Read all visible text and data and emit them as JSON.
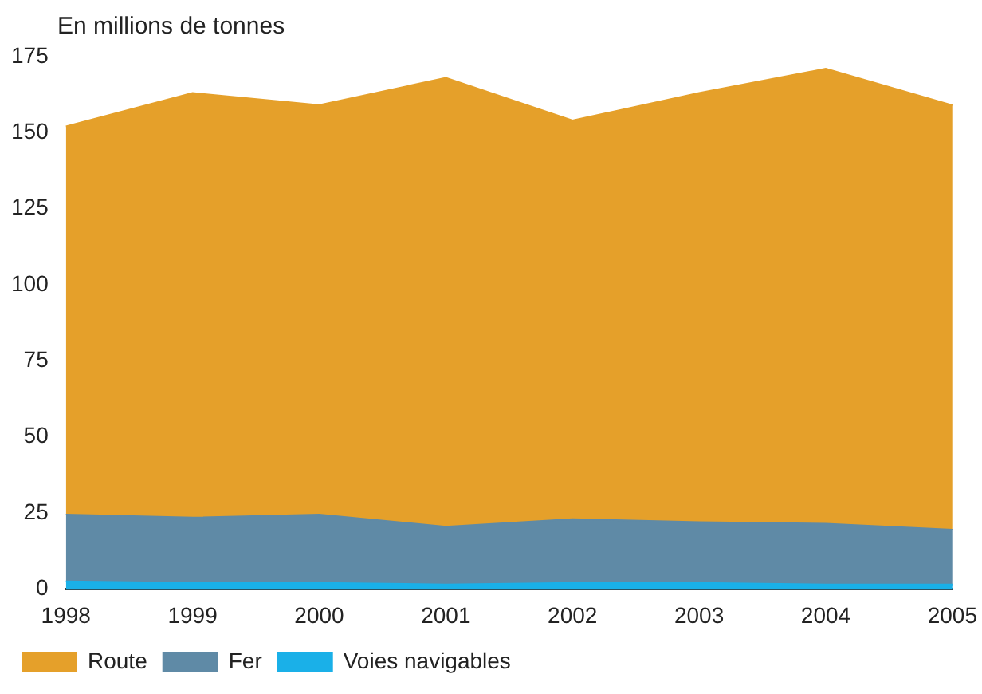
{
  "chart_data": {
    "type": "area",
    "stacked": true,
    "ylabel": "En millions de tonnes",
    "categories": [
      "1998",
      "1999",
      "2000",
      "2001",
      "2002",
      "2003",
      "2004",
      "2005"
    ],
    "series": [
      {
        "name": "Voies navigables",
        "color": "#1ab0e8",
        "values": [
          2.5,
          2,
          2,
          1.5,
          2,
          2,
          1.5,
          1.5
        ]
      },
      {
        "name": "Fer",
        "color": "#5f8aa6",
        "values": [
          22,
          21.5,
          22.5,
          19,
          21,
          20,
          20,
          18
        ]
      },
      {
        "name": "Route",
        "color": "#e5a02a",
        "values": [
          127.5,
          139.5,
          134.5,
          147.5,
          131,
          141,
          149.5,
          139.5
        ]
      }
    ],
    "ylim": [
      0,
      175
    ],
    "yticks": [
      0,
      25,
      50,
      75,
      100,
      125,
      150,
      175
    ],
    "grid": false,
    "legend": "bottom left",
    "marker": "none"
  }
}
